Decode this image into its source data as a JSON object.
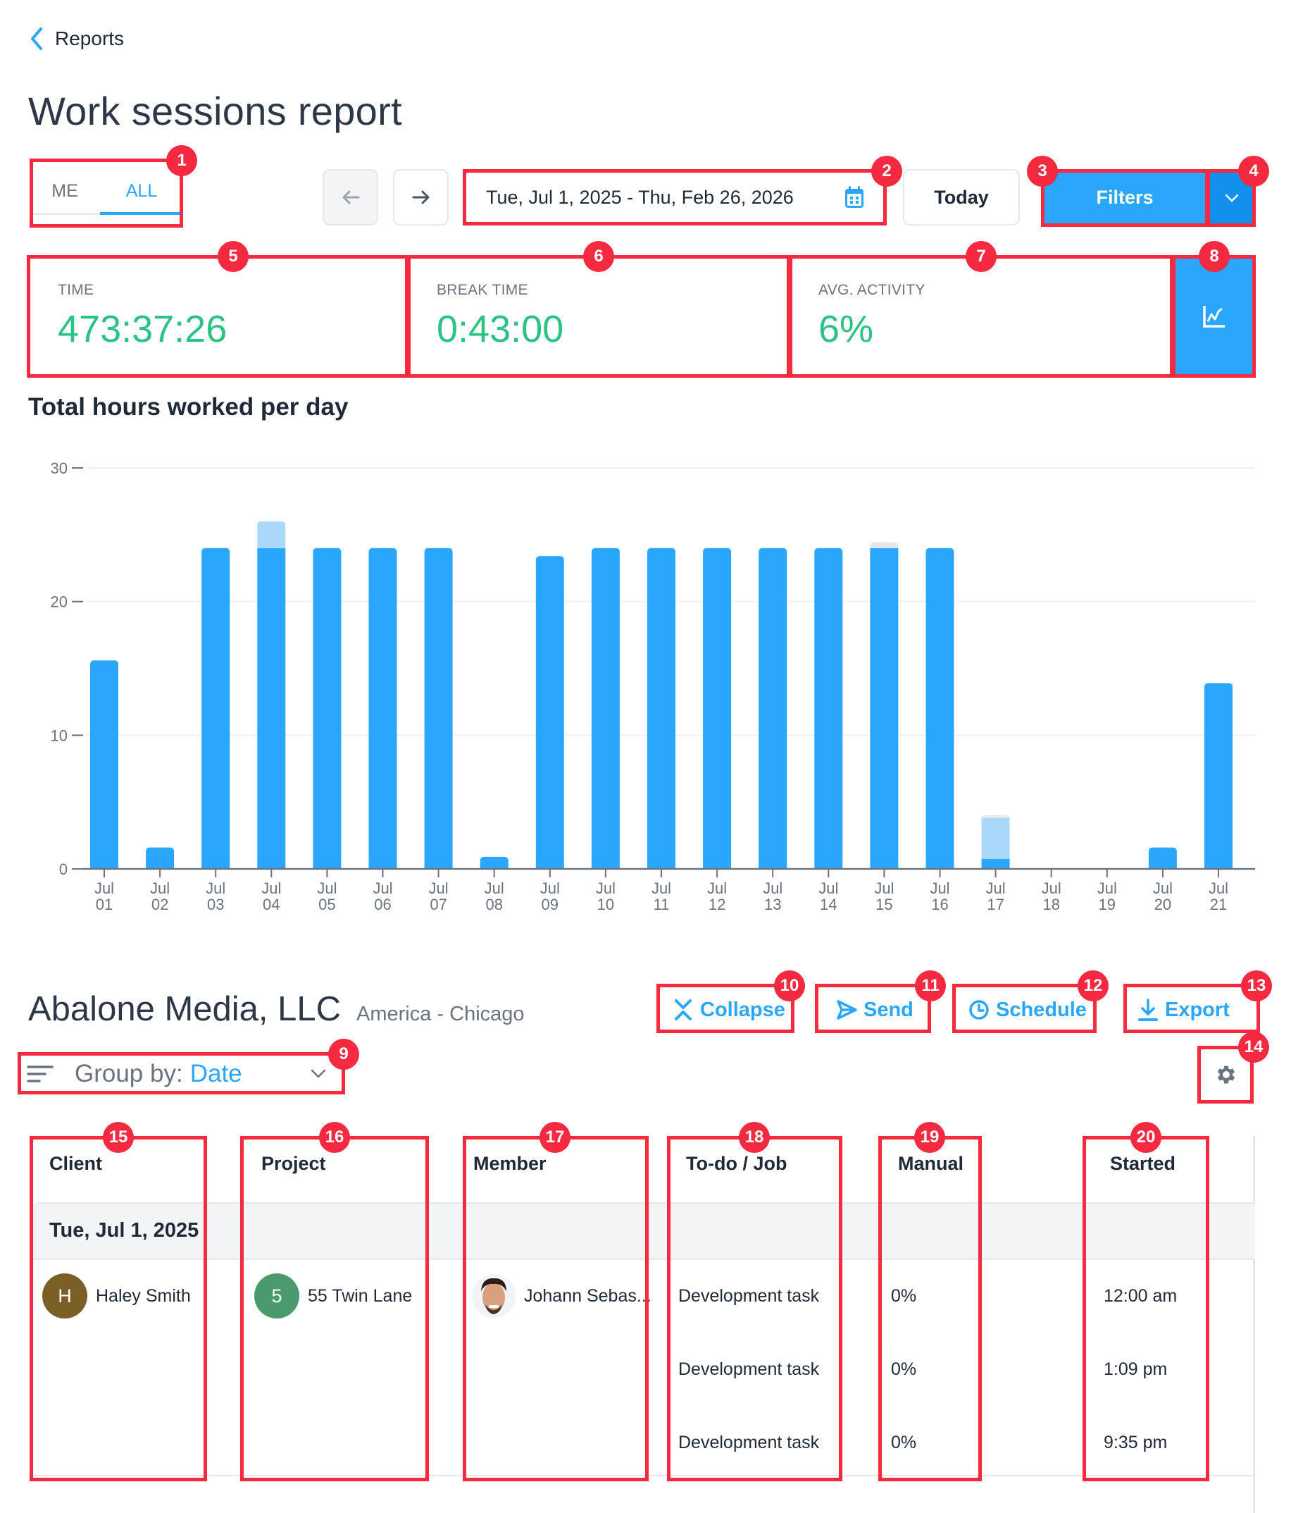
{
  "nav": {
    "back_label": "Reports"
  },
  "page": {
    "title": "Work sessions report"
  },
  "scope_tabs": [
    {
      "label": "ME",
      "active": false
    },
    {
      "label": "ALL",
      "active": true
    }
  ],
  "date_range": {
    "value": "Tue, Jul 1, 2025 - Thu, Feb 26, 2026"
  },
  "toolbar": {
    "today_label": "Today",
    "filters_label": "Filters"
  },
  "stats": [
    {
      "label": "TIME",
      "value": "473:37:26"
    },
    {
      "label": "BREAK TIME",
      "value": "0:43:00"
    },
    {
      "label": "AVG. ACTIVITY",
      "value": "6%"
    }
  ],
  "colors": {
    "accent": "#2aa7fc",
    "accent_dark": "#1190ee",
    "stat_value": "#2bc384",
    "bar_primary": "#2aa7fc",
    "bar_secondary": "#a9d8fb",
    "bar_tertiary": "#e5e7eb"
  },
  "chart_data": {
    "type": "bar",
    "title": "Total hours worked per day",
    "xlabel": "",
    "ylabel": "",
    "ylim": [
      0,
      30
    ],
    "yticks": [
      0,
      10,
      20,
      30
    ],
    "grid": true,
    "stacked": true,
    "categories": [
      [
        "Jul",
        "01"
      ],
      [
        "Jul",
        "02"
      ],
      [
        "Jul",
        "03"
      ],
      [
        "Jul",
        "04"
      ],
      [
        "Jul",
        "05"
      ],
      [
        "Jul",
        "06"
      ],
      [
        "Jul",
        "07"
      ],
      [
        "Jul",
        "08"
      ],
      [
        "Jul",
        "09"
      ],
      [
        "Jul",
        "10"
      ],
      [
        "Jul",
        "11"
      ],
      [
        "Jul",
        "12"
      ],
      [
        "Jul",
        "13"
      ],
      [
        "Jul",
        "14"
      ],
      [
        "Jul",
        "15"
      ],
      [
        "Jul",
        "16"
      ],
      [
        "Jul",
        "17"
      ],
      [
        "Jul",
        "18"
      ],
      [
        "Jul",
        "19"
      ],
      [
        "Jul",
        "20"
      ],
      [
        "Jul",
        "21"
      ]
    ],
    "series": [
      {
        "name": "primary",
        "color": "#2aa7fc",
        "values": [
          15.6,
          1.6,
          24,
          24,
          24,
          24,
          24,
          0.9,
          23.4,
          24,
          24,
          24,
          24,
          24,
          24,
          24,
          0.75,
          0,
          0,
          1.6,
          13.9
        ]
      },
      {
        "name": "secondary",
        "color": "#a9d8fb",
        "values": [
          0,
          0,
          0,
          2,
          0,
          0,
          0,
          0,
          0,
          0,
          0,
          0,
          0,
          0,
          0,
          0,
          3.05,
          0,
          0,
          0,
          0
        ]
      },
      {
        "name": "tertiary",
        "color": "#e5e7eb",
        "values": [
          0,
          0,
          0,
          0,
          0,
          0,
          0,
          0,
          0,
          0,
          0,
          0,
          0,
          0,
          0.45,
          0,
          0.2,
          0,
          0,
          0,
          0
        ]
      }
    ]
  },
  "org": {
    "name": "Abalone Media, LLC",
    "timezone": "America - Chicago"
  },
  "actions": {
    "collapse": "Collapse",
    "send": "Send",
    "schedule": "Schedule",
    "export": "Export"
  },
  "group_by": {
    "label": "Group by:",
    "value": "Date"
  },
  "table": {
    "columns": [
      "Client",
      "Project",
      "Member",
      "To-do / Job",
      "Manual",
      "Started"
    ],
    "group_label": "Tue, Jul 1, 2025",
    "client": {
      "initial": "H",
      "name": "Haley Smith",
      "color": "#7a5f26"
    },
    "project": {
      "initial": "5",
      "name": "55 Twin Lane",
      "color": "#4a9a6e"
    },
    "member": {
      "name": "Johann Sebas..."
    },
    "rows": [
      {
        "todo": "Development task",
        "manual": "0%",
        "started": "12:00 am"
      },
      {
        "todo": "Development task",
        "manual": "0%",
        "started": "1:09 pm"
      },
      {
        "todo": "Development task",
        "manual": "0%",
        "started": "9:35 pm"
      }
    ]
  },
  "annotations": [
    "1",
    "2",
    "3",
    "4",
    "5",
    "6",
    "7",
    "8",
    "9",
    "10",
    "11",
    "12",
    "13",
    "14",
    "15",
    "16",
    "17",
    "18",
    "19",
    "20"
  ]
}
